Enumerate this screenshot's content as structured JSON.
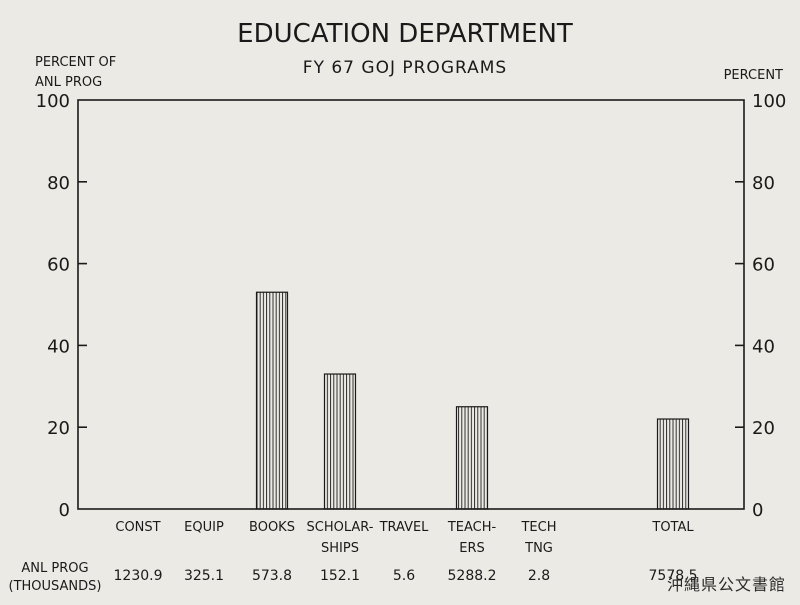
{
  "chart_data": {
    "type": "bar",
    "title": "EDUCATION DEPARTMENT",
    "subtitle": "FY 67 GOJ PROGRAMS",
    "ylabel_left": [
      "PERCENT OF",
      "ANL PROG"
    ],
    "ylabel_right": "PERCENT",
    "ylim": [
      0,
      100
    ],
    "yticks": [
      0,
      20,
      40,
      60,
      80,
      100
    ],
    "categories": [
      [
        "CONST"
      ],
      [
        "EQUIP"
      ],
      [
        "BOOKS"
      ],
      [
        "SCHOLAR-",
        "SHIPS"
      ],
      [
        "TRAVEL"
      ],
      [
        "TEACH-",
        "ERS"
      ],
      [
        "TECH",
        "TNG"
      ],
      [
        "TOTAL"
      ]
    ],
    "values": [
      0,
      0,
      53,
      33,
      0,
      25,
      0,
      22
    ],
    "row_label": [
      "ANL PROG",
      "(THOUSANDS)"
    ],
    "row_values": [
      "1230.9",
      "325.1",
      "573.8",
      "152.1",
      "5.6",
      "5288.2",
      "2.8",
      "7578.5"
    ],
    "grid": false,
    "bar_fill": "vertical-hatch",
    "colors": {
      "ink": "#1a1a1a",
      "background": "#eceae4"
    }
  },
  "stamp": "沖縄県公文書館"
}
